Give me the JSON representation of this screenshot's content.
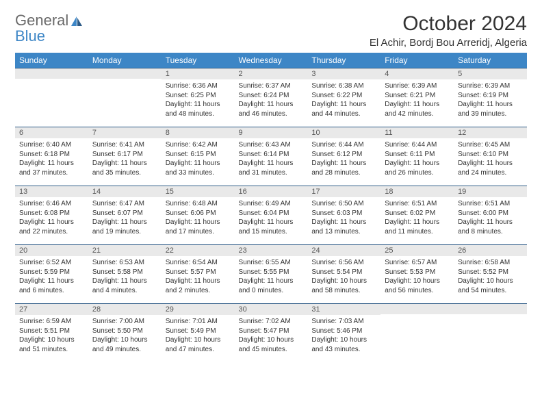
{
  "brand": {
    "line1": "General",
    "line2": "Blue"
  },
  "title": "October 2024",
  "location": "El Achir, Bordj Bou Arreridj, Algeria",
  "colors": {
    "header_bg": "#3d86c6",
    "header_fg": "#ffffff",
    "daybar_bg": "#e9e9e9",
    "daybar_border": "#2c5a86",
    "text": "#333333",
    "logo_gray": "#6a6a6a",
    "logo_blue": "#3d86c6",
    "page_bg": "#ffffff"
  },
  "columns": [
    "Sunday",
    "Monday",
    "Tuesday",
    "Wednesday",
    "Thursday",
    "Friday",
    "Saturday"
  ],
  "weeks": [
    [
      null,
      null,
      {
        "n": "1",
        "sr": "6:36 AM",
        "ss": "6:25 PM",
        "dl": "11 hours and 48 minutes."
      },
      {
        "n": "2",
        "sr": "6:37 AM",
        "ss": "6:24 PM",
        "dl": "11 hours and 46 minutes."
      },
      {
        "n": "3",
        "sr": "6:38 AM",
        "ss": "6:22 PM",
        "dl": "11 hours and 44 minutes."
      },
      {
        "n": "4",
        "sr": "6:39 AM",
        "ss": "6:21 PM",
        "dl": "11 hours and 42 minutes."
      },
      {
        "n": "5",
        "sr": "6:39 AM",
        "ss": "6:19 PM",
        "dl": "11 hours and 39 minutes."
      }
    ],
    [
      {
        "n": "6",
        "sr": "6:40 AM",
        "ss": "6:18 PM",
        "dl": "11 hours and 37 minutes."
      },
      {
        "n": "7",
        "sr": "6:41 AM",
        "ss": "6:17 PM",
        "dl": "11 hours and 35 minutes."
      },
      {
        "n": "8",
        "sr": "6:42 AM",
        "ss": "6:15 PM",
        "dl": "11 hours and 33 minutes."
      },
      {
        "n": "9",
        "sr": "6:43 AM",
        "ss": "6:14 PM",
        "dl": "11 hours and 31 minutes."
      },
      {
        "n": "10",
        "sr": "6:44 AM",
        "ss": "6:12 PM",
        "dl": "11 hours and 28 minutes."
      },
      {
        "n": "11",
        "sr": "6:44 AM",
        "ss": "6:11 PM",
        "dl": "11 hours and 26 minutes."
      },
      {
        "n": "12",
        "sr": "6:45 AM",
        "ss": "6:10 PM",
        "dl": "11 hours and 24 minutes."
      }
    ],
    [
      {
        "n": "13",
        "sr": "6:46 AM",
        "ss": "6:08 PM",
        "dl": "11 hours and 22 minutes."
      },
      {
        "n": "14",
        "sr": "6:47 AM",
        "ss": "6:07 PM",
        "dl": "11 hours and 19 minutes."
      },
      {
        "n": "15",
        "sr": "6:48 AM",
        "ss": "6:06 PM",
        "dl": "11 hours and 17 minutes."
      },
      {
        "n": "16",
        "sr": "6:49 AM",
        "ss": "6:04 PM",
        "dl": "11 hours and 15 minutes."
      },
      {
        "n": "17",
        "sr": "6:50 AM",
        "ss": "6:03 PM",
        "dl": "11 hours and 13 minutes."
      },
      {
        "n": "18",
        "sr": "6:51 AM",
        "ss": "6:02 PM",
        "dl": "11 hours and 11 minutes."
      },
      {
        "n": "19",
        "sr": "6:51 AM",
        "ss": "6:00 PM",
        "dl": "11 hours and 8 minutes."
      }
    ],
    [
      {
        "n": "20",
        "sr": "6:52 AM",
        "ss": "5:59 PM",
        "dl": "11 hours and 6 minutes."
      },
      {
        "n": "21",
        "sr": "6:53 AM",
        "ss": "5:58 PM",
        "dl": "11 hours and 4 minutes."
      },
      {
        "n": "22",
        "sr": "6:54 AM",
        "ss": "5:57 PM",
        "dl": "11 hours and 2 minutes."
      },
      {
        "n": "23",
        "sr": "6:55 AM",
        "ss": "5:55 PM",
        "dl": "11 hours and 0 minutes."
      },
      {
        "n": "24",
        "sr": "6:56 AM",
        "ss": "5:54 PM",
        "dl": "10 hours and 58 minutes."
      },
      {
        "n": "25",
        "sr": "6:57 AM",
        "ss": "5:53 PM",
        "dl": "10 hours and 56 minutes."
      },
      {
        "n": "26",
        "sr": "6:58 AM",
        "ss": "5:52 PM",
        "dl": "10 hours and 54 minutes."
      }
    ],
    [
      {
        "n": "27",
        "sr": "6:59 AM",
        "ss": "5:51 PM",
        "dl": "10 hours and 51 minutes."
      },
      {
        "n": "28",
        "sr": "7:00 AM",
        "ss": "5:50 PM",
        "dl": "10 hours and 49 minutes."
      },
      {
        "n": "29",
        "sr": "7:01 AM",
        "ss": "5:49 PM",
        "dl": "10 hours and 47 minutes."
      },
      {
        "n": "30",
        "sr": "7:02 AM",
        "ss": "5:47 PM",
        "dl": "10 hours and 45 minutes."
      },
      {
        "n": "31",
        "sr": "7:03 AM",
        "ss": "5:46 PM",
        "dl": "10 hours and 43 minutes."
      },
      null,
      null
    ]
  ],
  "labels": {
    "sunrise": "Sunrise: ",
    "sunset": "Sunset: ",
    "daylight": "Daylight: "
  }
}
